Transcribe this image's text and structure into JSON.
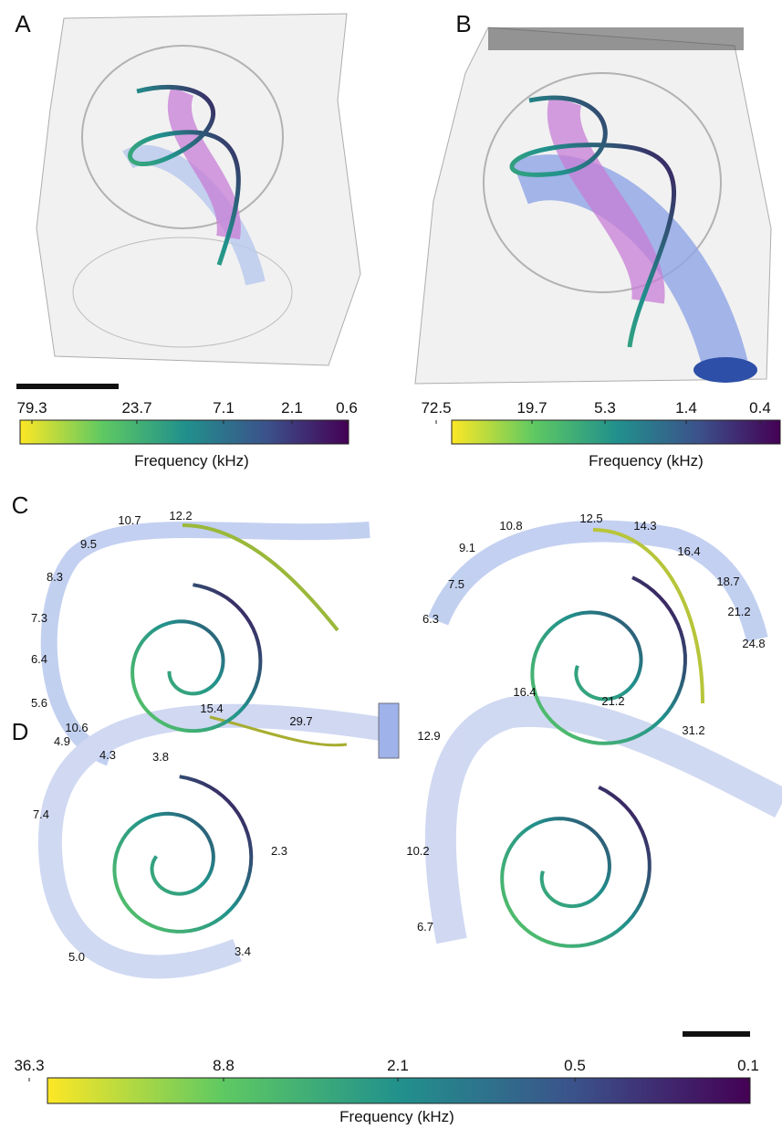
{
  "panels": {
    "A": {
      "label": "A",
      "colorbar": {
        "ticks": [
          "79.3",
          "23.7",
          "7.1",
          "2.1",
          "0.6"
        ],
        "title": "Frequency (kHz)"
      }
    },
    "B": {
      "label": "B",
      "colorbar": {
        "ticks": [
          "72.5",
          "19.7",
          "5.3",
          "1.4",
          "0.4"
        ],
        "title": "Frequency (kHz)"
      }
    },
    "C": {
      "label": "C",
      "left_labels": [
        "10.7",
        "12.2",
        "9.5",
        "8.3",
        "7.3",
        "6.4",
        "5.6",
        "4.9",
        "4.3",
        "3.8"
      ],
      "right_labels": [
        "10.8",
        "12.5",
        "14.3",
        "9.1",
        "16.4",
        "7.5",
        "18.7",
        "6.3",
        "21.2",
        "24.8"
      ]
    },
    "D": {
      "label": "D",
      "left_labels": [
        "15.4",
        "10.6",
        "29.7",
        "7.4",
        "2.3",
        "5.0",
        "3.4"
      ],
      "right_labels": [
        "16.4",
        "21.2",
        "12.9",
        "31.2",
        "10.2",
        "6.7"
      ],
      "colorbar": {
        "ticks": [
          "36.3",
          "8.8",
          "2.1",
          "0.5",
          "0.1"
        ],
        "title": "Frequency (kHz)"
      }
    }
  }
}
